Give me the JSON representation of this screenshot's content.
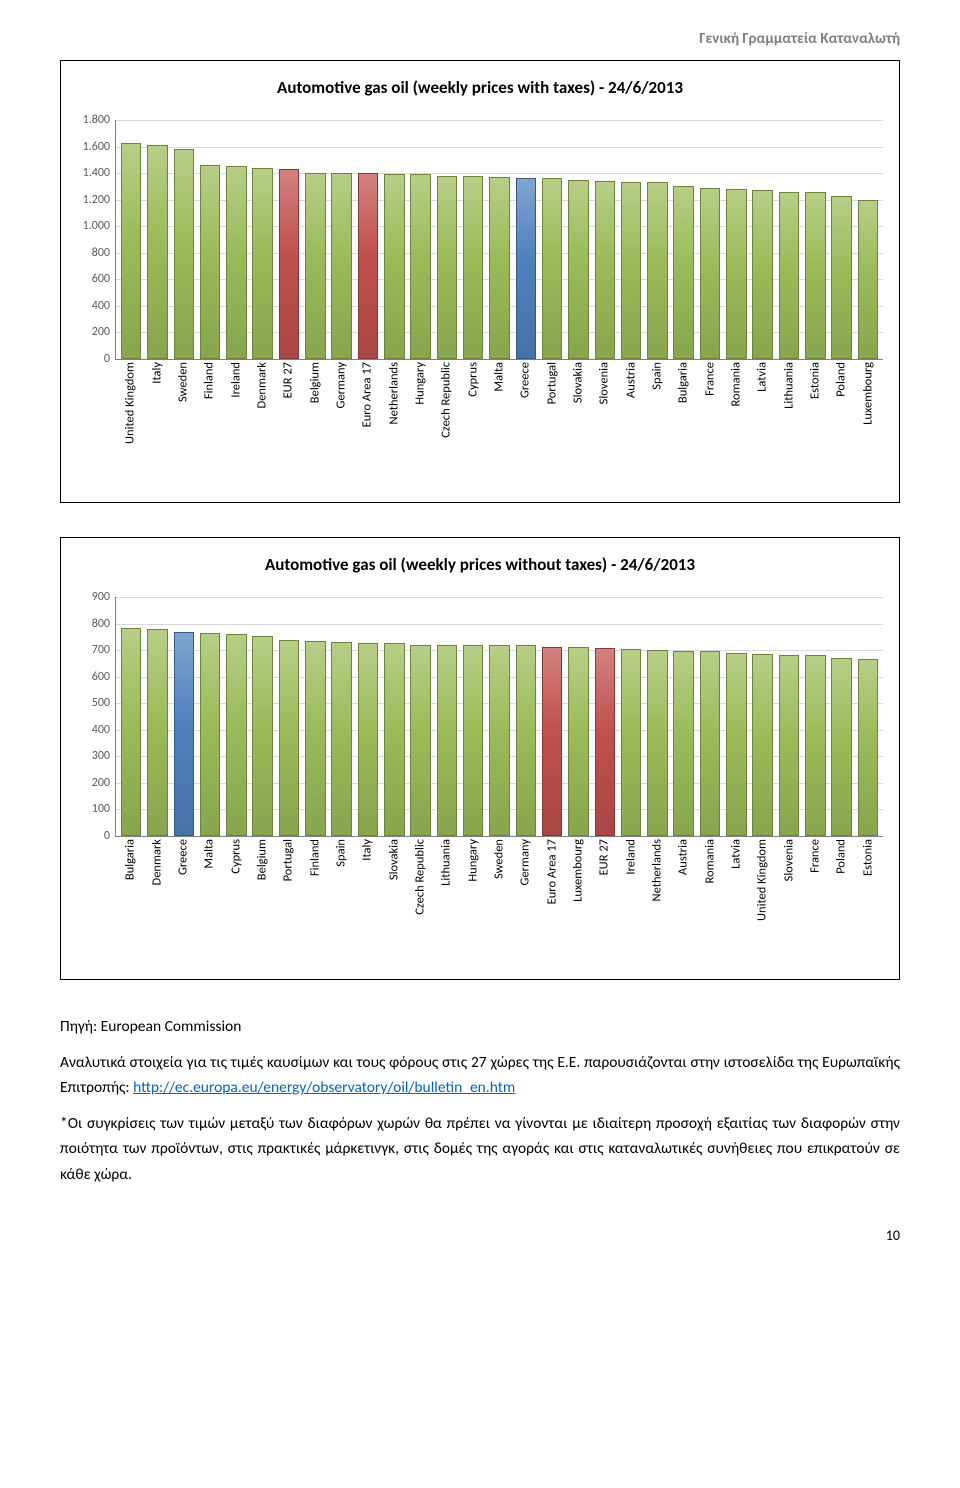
{
  "header": {
    "text": "Γενική Γραμματεία Καταναλωτή"
  },
  "chart1": {
    "type": "bar",
    "title": "Automotive gas oil (weekly prices with taxes) - 24/6/2013",
    "background_color": "#ffffff",
    "grid_color": "#d9d9d9",
    "colors": {
      "default": "#9bbb59",
      "highlight_red": "#c0504d",
      "highlight_blue": "#4f81bd",
      "border": "#71893f"
    },
    "ylim": [
      0,
      1800
    ],
    "ytick_step": 200,
    "yticks": [
      0,
      200,
      400,
      600,
      800,
      "1.000",
      "1.200",
      "1.400",
      "1.600",
      "1.800"
    ],
    "categories": [
      "United Kingdom",
      "Italy",
      "Sweden",
      "Finland",
      "Ireland",
      "Denmark",
      "EUR 27",
      "Belgium",
      "Germany",
      "Euro Area 17",
      "Netherlands",
      "Hungary",
      "Czech Republic",
      "Cyprus",
      "Malta",
      "Greece",
      "Portugal",
      "Slovakia",
      "Slovenia",
      "Austria",
      "Spain",
      "Bulgaria",
      "France",
      "Romania",
      "Latvia",
      "Lithuania",
      "Estonia",
      "Poland",
      "Luxembourg"
    ],
    "values": [
      1630,
      1610,
      1580,
      1460,
      1450,
      1440,
      1430,
      1400,
      1400,
      1400,
      1390,
      1390,
      1380,
      1380,
      1370,
      1360,
      1360,
      1350,
      1340,
      1330,
      1330,
      1300,
      1290,
      1280,
      1270,
      1260,
      1260,
      1230,
      1200
    ],
    "highlights": {
      "EUR 27": "highlight_red",
      "Euro Area 17": "highlight_red",
      "Greece": "highlight_blue"
    },
    "title_fontsize": 17,
    "label_fontsize": 12
  },
  "chart2": {
    "type": "bar",
    "title": "Automotive gas oil (weekly prices without taxes) - 24/6/2013",
    "background_color": "#ffffff",
    "grid_color": "#d9d9d9",
    "colors": {
      "default": "#9bbb59",
      "highlight_red": "#c0504d",
      "highlight_blue": "#4f81bd",
      "border": "#71893f"
    },
    "ylim": [
      0,
      900
    ],
    "ytick_step": 100,
    "yticks": [
      0,
      100,
      200,
      300,
      400,
      500,
      600,
      700,
      800,
      900
    ],
    "categories": [
      "Bulgaria",
      "Denmark",
      "Greece",
      "Malta",
      "Cyprus",
      "Belgium",
      "Portugal",
      "Finland",
      "Spain",
      "Italy",
      "Slovakia",
      "Czech Republic",
      "Lithuania",
      "Hungary",
      "Sweden",
      "Germany",
      "Euro Area 17",
      "Luxembourg",
      "EUR 27",
      "Ireland",
      "Netherlands",
      "Austria",
      "Romania",
      "Latvia",
      "United Kingdom",
      "Slovenia",
      "France",
      "Poland",
      "Estonia"
    ],
    "values": [
      785,
      780,
      770,
      765,
      760,
      755,
      740,
      735,
      730,
      725,
      725,
      720,
      720,
      720,
      720,
      718,
      710,
      710,
      708,
      705,
      700,
      695,
      695,
      690,
      685,
      680,
      680,
      670,
      665
    ],
    "highlights": {
      "Greece": "highlight_blue",
      "Euro Area 17": "highlight_red",
      "EUR 27": "highlight_red"
    },
    "title_fontsize": 17,
    "label_fontsize": 12
  },
  "body": {
    "source_label": "Πηγή: European Commission",
    "para1_a": "Αναλυτικά στοιχεία για τις τιμές καυσίμων και τους φόρους στις 27 χώρες της Ε.Ε. παρουσιάζονται στην ιστοσελίδα της Ευρωπαϊκής Επιτροπής: ",
    "link_text": "http://ec.europa.eu/energy/observatory/oil/bulletin_en.htm",
    "para2": "*Οι συγκρίσεις των τιμών μεταξύ των διαφόρων χωρών θα πρέπει να γίνονται με ιδιαίτερη προσοχή εξαιτίας των διαφορών στην ποιότητα των προϊόντων, στις πρακτικές μάρκετινγκ, στις δομές της αγοράς και στις καταναλωτικές συνήθειες που επικρατούν σε κάθε χώρα."
  },
  "page_number": "10"
}
